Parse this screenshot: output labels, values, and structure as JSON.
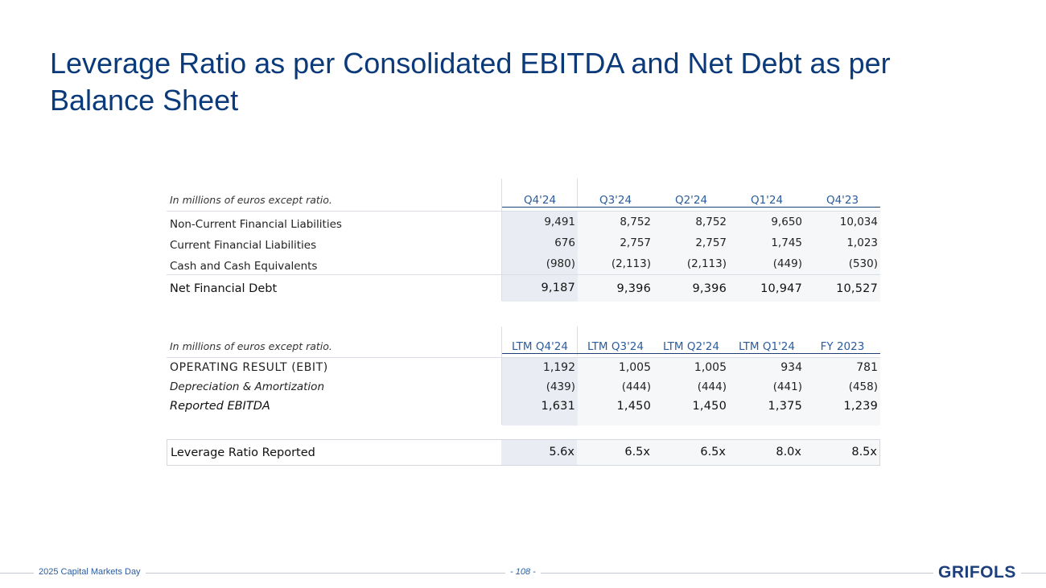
{
  "slide": {
    "title": "Leverage Ratio as per Consolidated EBITDA and Net Debt as per Balance Sheet"
  },
  "debt_table": {
    "header_label": "In millions of euros except ratio.",
    "columns": [
      "Q4'24",
      "Q3'24",
      "Q2'24",
      "Q1'24",
      "Q4'23"
    ],
    "rows": [
      {
        "label": "Non-Current Financial Liabilities",
        "values": [
          "9,491",
          "8,752",
          "8,752",
          "9,650",
          "10,034"
        ]
      },
      {
        "label": "Current Financial Liabilities",
        "values": [
          "676",
          "2,757",
          "2,757",
          "1,745",
          "1,023"
        ]
      },
      {
        "label": "Cash and Cash Equivalents",
        "values": [
          "(980)",
          "(2,113)",
          "(2,113)",
          "(449)",
          "(530)"
        ]
      }
    ],
    "total": {
      "label": "Net Financial Debt",
      "values": [
        "9,187",
        "9,396",
        "9,396",
        "10,947",
        "10,527"
      ]
    }
  },
  "ebitda_table": {
    "header_label": "In millions of euros except ratio.",
    "columns": [
      "LTM Q4'24",
      "LTM Q3'24",
      "LTM Q2'24",
      "LTM Q1'24",
      "FY 2023"
    ],
    "rows": [
      {
        "label": "OPERATING RESULT (EBIT)",
        "values": [
          "1,192",
          "1,005",
          "1,005",
          "934",
          "781"
        ]
      },
      {
        "label": "Depreciation & Amortization",
        "values": [
          "(439)",
          "(444)",
          "(444)",
          "(441)",
          "(458)"
        ]
      },
      {
        "label": "Reported EBITDA",
        "values": [
          "1,631",
          "1,450",
          "1,450",
          "1,375",
          "1,239"
        ]
      }
    ]
  },
  "leverage": {
    "label": "Leverage Ratio Reported",
    "values": [
      "5.6x",
      "6.5x",
      "6.5x",
      "8.0x",
      "8.5x"
    ]
  },
  "footer": {
    "event": "2025 Capital Markets Day",
    "page": "- 108 -",
    "logo": "GRIFOLS"
  }
}
